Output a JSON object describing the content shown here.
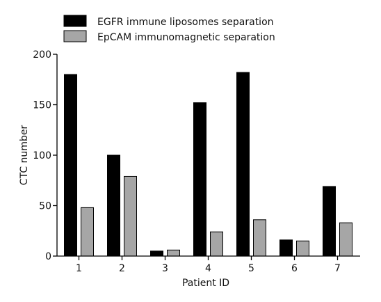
{
  "chart_data": {
    "type": "bar",
    "title": "",
    "xlabel": "Patient ID",
    "ylabel": "CTC number",
    "categories": [
      "1",
      "2",
      "3",
      "4",
      "5",
      "6",
      "7"
    ],
    "ylim": [
      0,
      200
    ],
    "yticks": [
      "0",
      "50",
      "100",
      "150",
      "200"
    ],
    "grid": false,
    "legend_position": "top-left",
    "series": [
      {
        "name": "EGFR immune liposomes separation",
        "color": "#000000",
        "values": [
          180,
          100,
          5,
          152,
          182,
          16,
          69
        ]
      },
      {
        "name": "EpCAM immunomagnetic separation",
        "color": "#a6a6a6",
        "values": [
          48,
          79,
          6,
          24,
          36,
          15,
          33
        ]
      }
    ]
  }
}
